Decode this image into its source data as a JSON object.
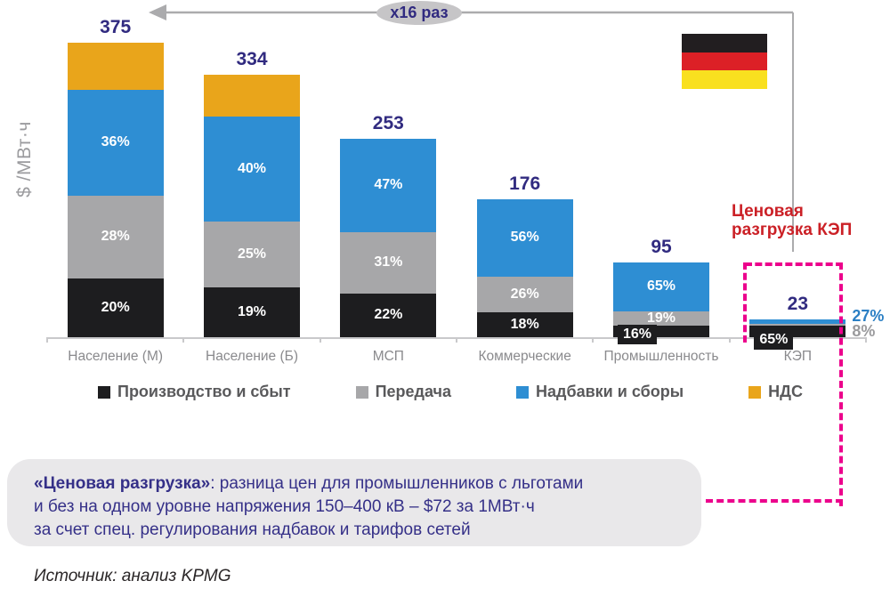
{
  "chart_data": {
    "type": "bar",
    "subtype": "stacked",
    "title": "",
    "xlabel": "",
    "ylabel": "$ /МВт·ч",
    "grid": false,
    "legend_position": "bottom",
    "categories": [
      "Население (М)",
      "Население (Б)",
      "МСП",
      "Коммерческие",
      "Промышленность",
      "КЭП"
    ],
    "totals": [
      375,
      334,
      253,
      176,
      95,
      23
    ],
    "series": [
      {
        "name": "Производство и сбыт",
        "color": "#1d1d1f",
        "pct": [
          20,
          19,
          22,
          18,
          16,
          65
        ],
        "label_placement": [
          "inside",
          "inside",
          "inside",
          "inside",
          "badge",
          "badge"
        ]
      },
      {
        "name": "Передача",
        "color": "#a7a7a9",
        "label_color": "#9b9b9d",
        "pct": [
          28,
          25,
          31,
          26,
          19,
          8
        ],
        "label_placement": [
          "inside",
          "inside",
          "inside",
          "inside",
          "inside",
          "right"
        ]
      },
      {
        "name": "Надбавки и сборы",
        "color": "#2e8ed3",
        "label_color": "#2b7fc4",
        "pct": [
          36,
          40,
          47,
          56,
          65,
          27
        ],
        "label_placement": [
          "inside",
          "inside",
          "inside",
          "inside",
          "inside",
          "right"
        ]
      },
      {
        "name": "НДС",
        "color": "#e9a51b",
        "pct": [
          16,
          16,
          0,
          0,
          0,
          0
        ],
        "label_placement": [
          "none",
          "none",
          "none",
          "none",
          "none",
          "none"
        ]
      }
    ],
    "value_label_color": "#312b80",
    "axis_color": "#c9c9cb"
  },
  "annotations": {
    "multiplier_badge": "x16 раз",
    "price_relief_label": "Ценовая\nразгрузка КЭП",
    "price_relief_color": "#cb2026",
    "dashed_color": "#ec008c",
    "arrow_color": "#ababad"
  },
  "flag": {
    "country": "germany",
    "stripes": [
      "#221e20",
      "#dc2026",
      "#f9e01f"
    ]
  },
  "note": {
    "lead": "«Ценовая разгрузка»",
    "line1_rest": ": разница цен для промышленников с льготами",
    "line2": "и без на одном уровне напряжения 150–400 кВ – $72 за 1МВт·ч",
    "line3": "за счет спец. регулирования надбавок и тарифов сетей"
  },
  "source": "Источник: анализ KPMG"
}
